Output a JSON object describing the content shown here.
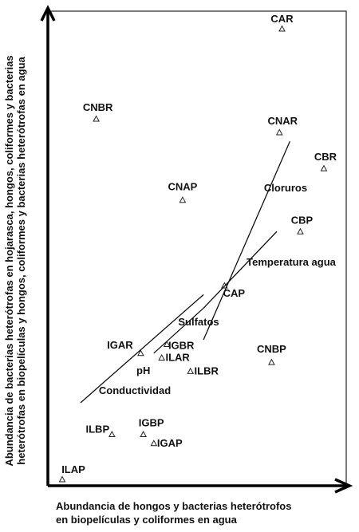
{
  "chart_data": {
    "type": "scatter",
    "title": "",
    "xlabel": [
      "Abundancia de hongos y bacterias heterótrofos",
      "en biopelículas y coliformes en agua"
    ],
    "ylabel": [
      "Abundancia de bacterias heterótrofas en hojarasca, hongos, coliformes y bacterias",
      "heterótrofas en biopelículas y hongos, coliformes y bacterias heterótrofas en agua"
    ],
    "points": [
      {
        "label": "CAR",
        "x": 0.84,
        "y": 1.0
      },
      {
        "label": "CNBR",
        "x": 0.13,
        "y": 0.8
      },
      {
        "label": "CNAR",
        "x": 0.83,
        "y": 0.77
      },
      {
        "label": "CBR",
        "x": 1.0,
        "y": 0.69
      },
      {
        "label": "CNAP",
        "x": 0.46,
        "y": 0.62
      },
      {
        "label": "CBP",
        "x": 0.91,
        "y": 0.55
      },
      {
        "label": "CAP",
        "x": 0.62,
        "y": 0.43
      },
      {
        "label": "IGAR",
        "x": 0.3,
        "y": 0.28
      },
      {
        "label": "IGBR",
        "x": 0.4,
        "y": 0.3
      },
      {
        "label": "ILAR",
        "x": 0.38,
        "y": 0.27
      },
      {
        "label": "pH",
        "x": 0.31,
        "y": 0.26
      },
      {
        "label": "ILBR",
        "x": 0.49,
        "y": 0.24
      },
      {
        "label": "CNBP",
        "x": 0.8,
        "y": 0.26
      },
      {
        "label": "IGBP",
        "x": 0.31,
        "y": 0.1
      },
      {
        "label": "ILBP",
        "x": 0.19,
        "y": 0.1
      },
      {
        "label": "IGAP",
        "x": 0.35,
        "y": 0.08
      },
      {
        "label": "ILAP",
        "x": 0.0,
        "y": 0.0
      }
    ],
    "vectors": [
      {
        "label": "Cloruros",
        "x0": 0.54,
        "y0": 0.31,
        "x1": 0.87,
        "y1": 0.75
      },
      {
        "label": "Temperatura agua",
        "x0": 0.54,
        "y0": 0.38,
        "x1": 0.82,
        "y1": 0.55
      },
      {
        "label": "Sulfatos",
        "x0": 0.35,
        "y0": 0.28,
        "x1": 0.54,
        "y1": 0.38
      },
      {
        "label": "Conductividad",
        "x0": 0.07,
        "y0": 0.17,
        "x1": 0.54,
        "y1": 0.41
      }
    ]
  }
}
